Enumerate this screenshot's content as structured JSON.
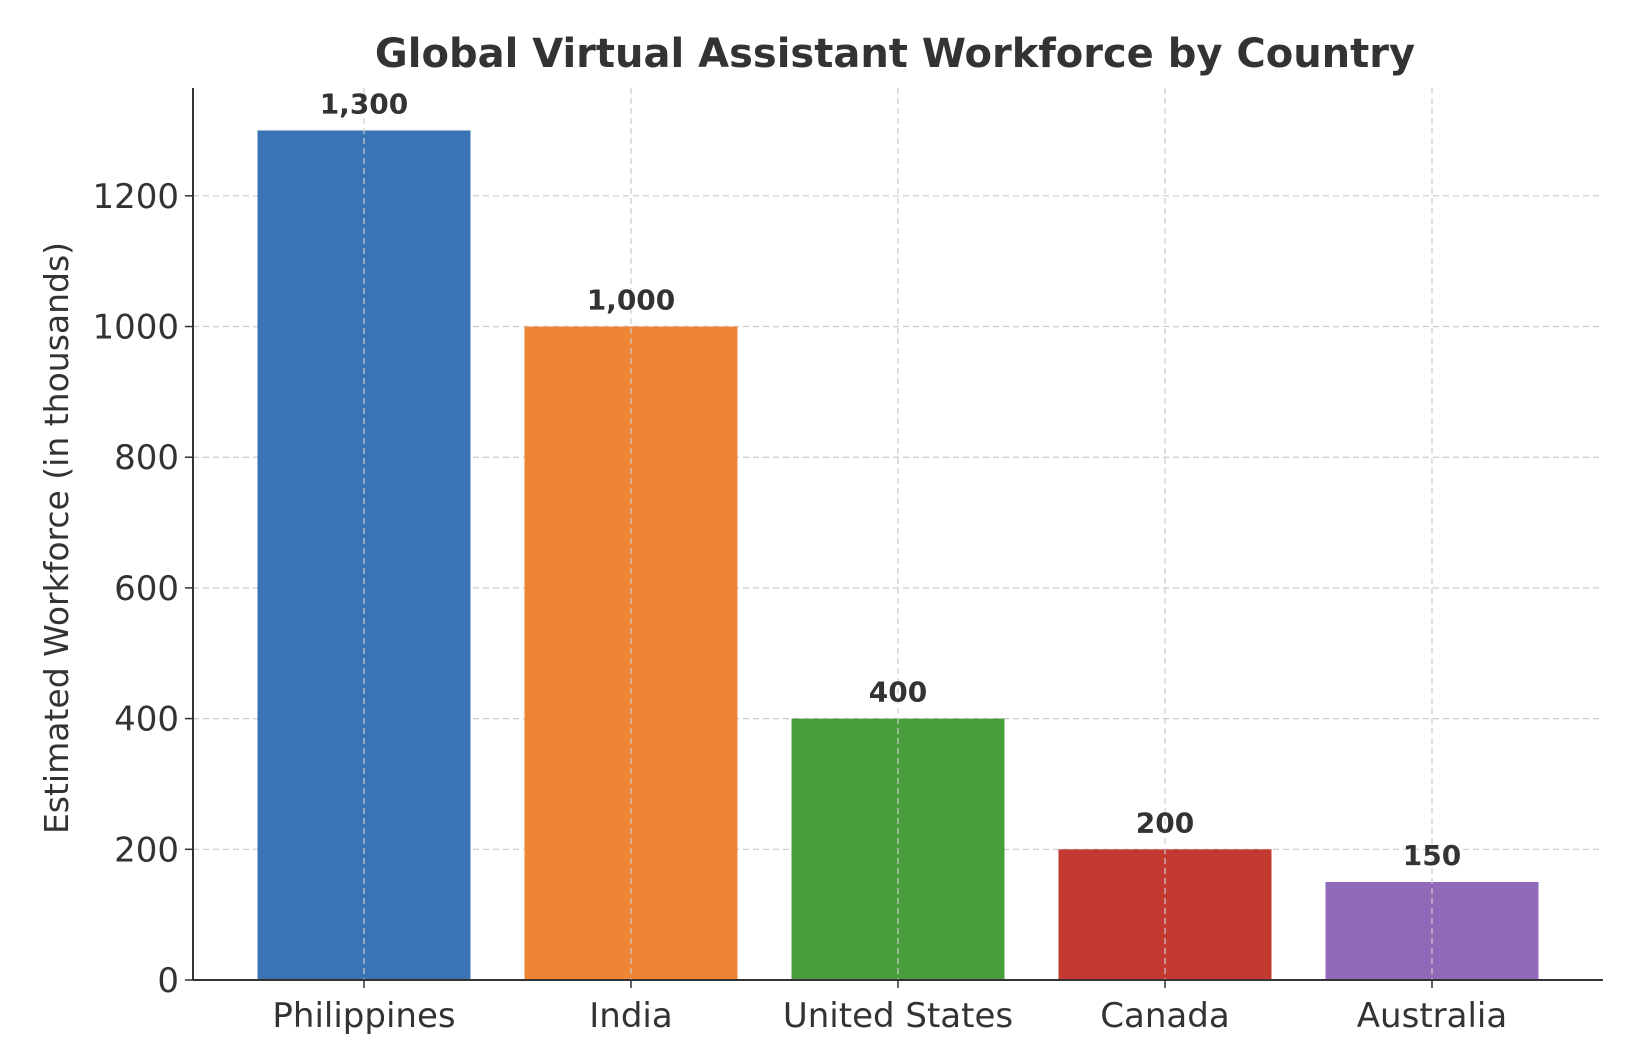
{
  "chart_data": {
    "type": "bar",
    "title": "Global Virtual Assistant Workforce by Country",
    "xlabel": "",
    "ylabel": "Estimated Workforce (in thousands)",
    "categories": [
      "Philippines",
      "India",
      "United States",
      "Canada",
      "Australia"
    ],
    "values": [
      1300,
      1000,
      400,
      200,
      150
    ],
    "data_labels": [
      "1,300",
      "1,000",
      "400",
      "200",
      "150"
    ],
    "colors": [
      "#3a74b4",
      "#ee8434",
      "#4a9d3d",
      "#c43a31",
      "#8e6ab8"
    ],
    "ylim": [
      0,
      1365
    ],
    "yticks": [
      0,
      200,
      400,
      600,
      800,
      1000,
      1200
    ],
    "ytick_labels": [
      "0",
      "200",
      "400",
      "600",
      "800",
      "1000",
      "1200"
    ],
    "grid": true,
    "legend": "none"
  }
}
